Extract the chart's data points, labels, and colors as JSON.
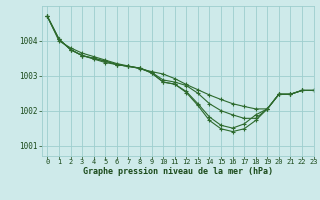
{
  "title": "Graphe pression niveau de la mer (hPa)",
  "background_color": "#ceeaea",
  "grid_color": "#9ecece",
  "line_color": "#2d6a2d",
  "xlim": [
    -0.5,
    23
  ],
  "ylim": [
    1000.7,
    1005.0
  ],
  "yticks": [
    1001,
    1002,
    1003,
    1004
  ],
  "xticks": [
    0,
    1,
    2,
    3,
    4,
    5,
    6,
    7,
    8,
    9,
    10,
    11,
    12,
    13,
    14,
    15,
    16,
    17,
    18,
    19,
    20,
    21,
    22,
    23
  ],
  "series": [
    [
      1004.7,
      1004.0,
      1003.8,
      1003.65,
      1003.55,
      1003.45,
      1003.35,
      1003.28,
      1003.2,
      1003.12,
      1003.05,
      1002.92,
      1002.75,
      1002.6,
      1002.45,
      1002.32,
      1002.2,
      1002.12,
      1002.05,
      1002.05,
      1002.47,
      1002.47,
      1002.58,
      1002.58
    ],
    [
      1004.7,
      1004.05,
      1003.75,
      1003.58,
      1003.48,
      1003.38,
      1003.32,
      1003.27,
      1003.22,
      1003.1,
      1002.88,
      1002.82,
      1002.72,
      1002.5,
      1002.2,
      1002.0,
      1001.88,
      1001.78,
      1001.78,
      1002.05,
      1002.47,
      1002.47,
      1002.58,
      1002.58
    ],
    [
      1004.7,
      1004.05,
      1003.75,
      1003.58,
      1003.5,
      1003.42,
      1003.32,
      1003.27,
      1003.22,
      1003.08,
      1002.82,
      1002.76,
      1002.52,
      1002.15,
      1001.72,
      1001.48,
      1001.4,
      1001.48,
      1001.72,
      1002.05,
      1002.47,
      1002.47,
      1002.58,
      1002.58
    ],
    [
      1004.7,
      1004.05,
      1003.75,
      1003.58,
      1003.5,
      1003.42,
      1003.32,
      1003.27,
      1003.22,
      1003.08,
      1002.82,
      1002.76,
      1002.55,
      1002.2,
      1001.82,
      1001.58,
      1001.5,
      1001.62,
      1001.88,
      1002.05,
      1002.47,
      1002.47,
      1002.58,
      1002.58
    ]
  ]
}
